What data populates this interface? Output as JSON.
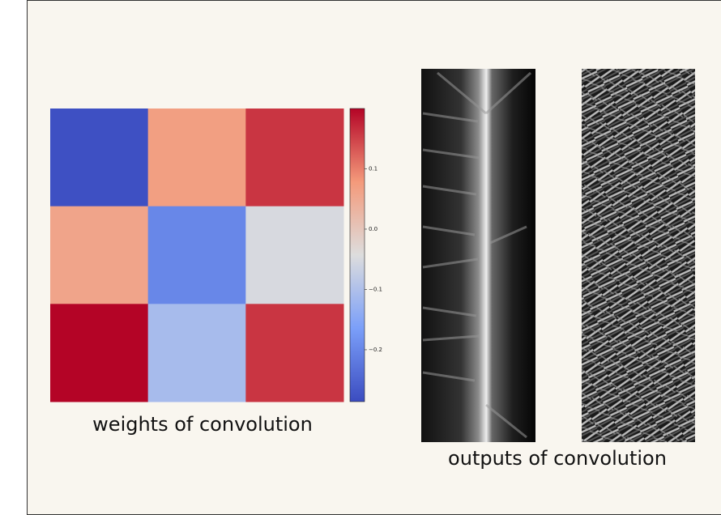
{
  "chart_data": {
    "type": "heatmap",
    "colormap": "coolwarm",
    "values": [
      [
        -0.28,
        0.07,
        0.16
      ],
      [
        0.06,
        -0.2,
        -0.05
      ],
      [
        0.2,
        -0.11,
        0.16
      ]
    ],
    "clim": [
      -0.286,
      0.2
    ],
    "colorbar_ticks": [
      {
        "value": -0.2,
        "label": "−0.2"
      },
      {
        "value": -0.1,
        "label": "−0.1"
      },
      {
        "value": 0,
        "label": "0.0"
      },
      0.1
    ],
    "caption": "weights of convolution",
    "outputs_caption": "outputs of convolution"
  }
}
